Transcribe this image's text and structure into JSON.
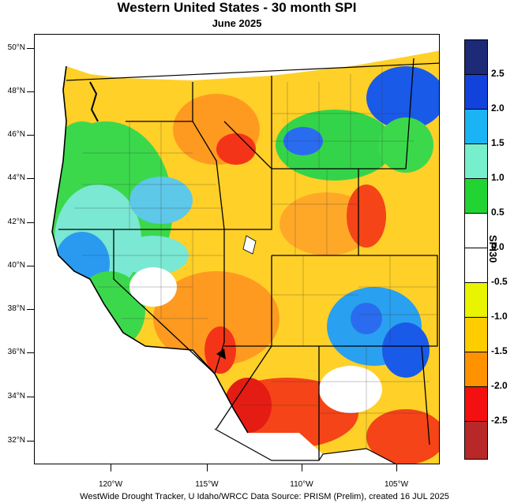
{
  "header": {
    "title": "Western United States - 30 month SPI",
    "subtitle": "June 2025"
  },
  "axes": {
    "lat_labels": [
      "50°N",
      "48°N",
      "46°N",
      "44°N",
      "42°N",
      "40°N",
      "38°N",
      "36°N",
      "34°N",
      "32°N"
    ],
    "lon_labels": [
      "120°W",
      "115°W",
      "110°W",
      "105°W"
    ]
  },
  "colorbar": {
    "title": "SPI30",
    "labels": [
      "2.5",
      "2.0",
      "1.5",
      "1.0",
      "0.5",
      "0.0",
      "-0.5",
      "-1.0",
      "-1.5",
      "-2.0",
      "-2.5"
    ],
    "colors": [
      "#1c2a78",
      "#1242dc",
      "#1ab4f4",
      "#76f0cc",
      "#22d432",
      "#ffffff",
      "#ffffff",
      "#e8f400",
      "#ffcc00",
      "#ff9200",
      "#f41010",
      "#b82828"
    ]
  },
  "footer": {
    "credit": "WestWide Drought Tracker, U Idaho/WRCC Data Source: PRISM (Prelim), created 16 JUL 2025"
  }
}
